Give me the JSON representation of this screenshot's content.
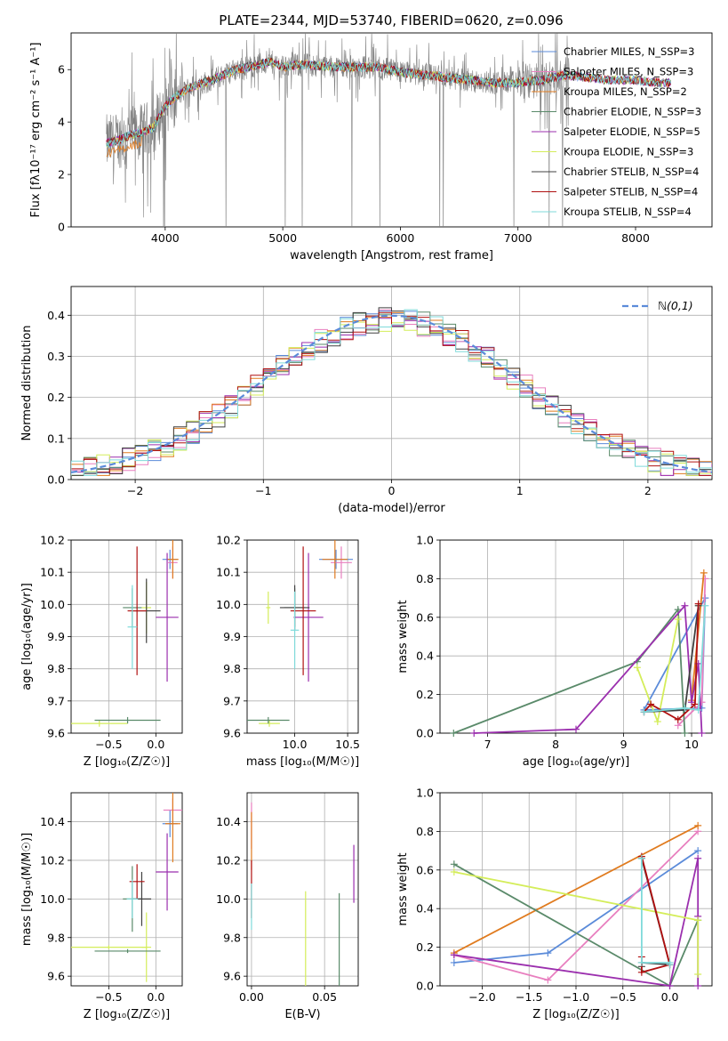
{
  "figure": {
    "title": "PLATE=2344, MJD=53740, FIBERID=0620, z=0.096"
  },
  "chart_data": [
    {
      "id": "spectrum",
      "type": "line",
      "title": "PLATE=2344, MJD=53740, FIBERID=0620, z=0.096",
      "xlabel": "wavelength [Angstrom, rest frame]",
      "ylabel": "Flux [fλ10⁻¹⁷ erg cm⁻² s⁻¹ A⁻¹]",
      "xlim": [
        3200,
        8650
      ],
      "ylim": [
        0,
        7.4
      ],
      "xticks": [
        4000,
        5000,
        6000,
        7000,
        8000
      ],
      "yticks": [
        0,
        2,
        4,
        6
      ],
      "grid": false,
      "legend_position": "right",
      "data_color": "#808080",
      "series": [
        {
          "name": "Chabrier MILES, N_SSP=3",
          "color": "#5b8bd9"
        },
        {
          "name": "Salpeter MILES, N_SSP=3",
          "color": "#e87fbf"
        },
        {
          "name": "Kroupa MILES, N_SSP=2",
          "color": "#e07b1f"
        },
        {
          "name": "Chabrier ELODIE, N_SSP=3",
          "color": "#5a8a6a"
        },
        {
          "name": "Salpeter ELODIE, N_SSP=5",
          "color": "#9b2fae"
        },
        {
          "name": "Kroupa ELODIE, N_SSP=3",
          "color": "#d4ed5a"
        },
        {
          "name": "Chabrier STELIB, N_SSP=4",
          "color": "#404040"
        },
        {
          "name": "Salpeter STELIB, N_SSP=4",
          "color": "#b01010"
        },
        {
          "name": "Kroupa STELIB, N_SSP=4",
          "color": "#7fdada"
        }
      ],
      "continuum": {
        "x": [
          3500,
          3600,
          3700,
          3800,
          3900,
          4000,
          4100,
          4200,
          4400,
          4600,
          4800,
          4900,
          5000,
          5200,
          5400,
          5600,
          5800,
          6000,
          6200,
          6400,
          6600,
          6800,
          7000,
          7200,
          7400,
          7600,
          7800,
          8000,
          8200,
          8300
        ],
        "y": [
          3.2,
          3.3,
          3.5,
          3.6,
          3.8,
          4.6,
          5.0,
          5.3,
          5.6,
          6.0,
          6.2,
          6.3,
          6.1,
          6.2,
          6.1,
          6.1,
          6.1,
          5.9,
          5.8,
          5.7,
          5.6,
          5.5,
          5.5,
          5.6,
          5.8,
          5.7,
          5.6,
          5.6,
          5.5,
          5.5
        ]
      }
    },
    {
      "id": "residuals",
      "type": "bar",
      "xlabel": "(data-model)/error",
      "ylabel": "Normed distribution",
      "xlim": [
        -2.5,
        2.5
      ],
      "ylim": [
        0,
        0.47
      ],
      "xticks": [
        -2,
        -1,
        0,
        1,
        2
      ],
      "yticks": [
        0.0,
        0.1,
        0.2,
        0.3,
        0.4
      ],
      "grid": true,
      "legend": "ℕ(0,1)",
      "legend_position": "top-right",
      "reference_curve": "normal(0,1)",
      "reference_color": "#5b8bd9"
    },
    {
      "id": "age-vs-Z",
      "type": "scatter",
      "xlabel": "Z [log₁₀(Z/Z☉)]",
      "ylabel": "age  [log₁₀(age/yr)]",
      "xlim": [
        -0.9,
        0.28
      ],
      "ylim": [
        9.6,
        10.2
      ],
      "xticks": [
        -0.5,
        0.0
      ],
      "yticks": [
        9.6,
        9.7,
        9.8,
        9.9,
        10.0,
        10.1,
        10.2
      ],
      "grid": true,
      "points": [
        {
          "x": 0.15,
          "y": 10.14,
          "xerr": 0.08,
          "yerr": 0.03,
          "color": "#5b8bd9"
        },
        {
          "x": 0.18,
          "y": 10.13,
          "xerr": 0.05,
          "yerr": 0.05,
          "color": "#e87fbf"
        },
        {
          "x": 0.18,
          "y": 10.14,
          "xerr": 0.06,
          "yerr": 0.06,
          "color": "#e07b1f"
        },
        {
          "x": -0.25,
          "y": 9.99,
          "xerr": 0.1,
          "yerr": 0.06,
          "color": "#5a8a6a"
        },
        {
          "x": 0.12,
          "y": 9.96,
          "xerr": 0.12,
          "yerr": 0.2,
          "color": "#9b2fae"
        },
        {
          "x": -0.1,
          "y": 9.99,
          "xerr": 0.05,
          "yerr": 0.08,
          "color": "#d4ed5a"
        },
        {
          "x": -0.1,
          "y": 9.98,
          "xerr": 0.15,
          "yerr": 0.1,
          "color": "#404040"
        },
        {
          "x": -0.2,
          "y": 9.98,
          "xerr": 0.1,
          "yerr": 0.2,
          "color": "#b01010"
        },
        {
          "x": -0.25,
          "y": 9.93,
          "xerr": 0.05,
          "yerr": 0.13,
          "color": "#7fdada"
        },
        {
          "x": -0.6,
          "y": 9.63,
          "xerr": 0.3,
          "yerr": 0.01,
          "color": "#d4ed5a"
        },
        {
          "x": -0.3,
          "y": 9.64,
          "xerr": 0.35,
          "yerr": 0.01,
          "color": "#5a8a6a"
        }
      ]
    },
    {
      "id": "age-vs-mass",
      "type": "scatter",
      "xlabel": "mass [log₁₀(M/M☉)]",
      "ylabel": "",
      "xlim": [
        9.55,
        10.6
      ],
      "ylim": [
        9.6,
        10.2
      ],
      "xticks": [
        10.0,
        10.5
      ],
      "yticks": [
        9.6,
        9.7,
        9.8,
        9.9,
        10.0,
        10.1,
        10.2
      ],
      "grid": true,
      "points": [
        {
          "x": 10.39,
          "y": 10.14,
          "xerr": 0.16,
          "yerr": 0.03,
          "color": "#5b8bd9"
        },
        {
          "x": 10.44,
          "y": 10.13,
          "xerr": 0.1,
          "yerr": 0.05,
          "color": "#e87fbf"
        },
        {
          "x": 10.38,
          "y": 10.14,
          "xerr": 0.12,
          "yerr": 0.06,
          "color": "#e07b1f"
        },
        {
          "x": 10.0,
          "y": 9.99,
          "xerr": 0.1,
          "yerr": 0.06,
          "color": "#5a8a6a"
        },
        {
          "x": 10.13,
          "y": 9.96,
          "xerr": 0.14,
          "yerr": 0.2,
          "color": "#9b2fae"
        },
        {
          "x": 9.75,
          "y": 9.99,
          "xerr": 0.02,
          "yerr": 0.05,
          "color": "#d4ed5a"
        },
        {
          "x": 10.0,
          "y": 9.99,
          "xerr": 0.14,
          "yerr": 0.07,
          "color": "#404040"
        },
        {
          "x": 10.08,
          "y": 9.98,
          "xerr": 0.12,
          "yerr": 0.2,
          "color": "#b01010"
        },
        {
          "x": 10.0,
          "y": 9.92,
          "xerr": 0.04,
          "yerr": 0.12,
          "color": "#7fdada"
        },
        {
          "x": 9.76,
          "y": 9.63,
          "xerr": 0.1,
          "yerr": 0.01,
          "color": "#d4ed5a"
        },
        {
          "x": 9.75,
          "y": 9.64,
          "xerr": 0.2,
          "yerr": 0.01,
          "color": "#5a8a6a"
        }
      ]
    },
    {
      "id": "weight-vs-age",
      "type": "line",
      "xlabel": "age  [log₁₀(age/yr)]",
      "ylabel": "mass weight",
      "xlim": [
        6.3,
        10.3
      ],
      "ylim": [
        0.0,
        1.0
      ],
      "xticks": [
        7,
        8,
        9,
        10
      ],
      "yticks": [
        0.0,
        0.2,
        0.4,
        0.6,
        0.8,
        1.0
      ],
      "grid": true,
      "series": [
        {
          "name": "Chabrier MILES, N_SSP=3",
          "color": "#5b8bd9",
          "x": [
            9.3,
            10.15,
            10.2,
            9.3
          ],
          "y": [
            0.12,
            0.13,
            0.7,
            0.12
          ]
        },
        {
          "name": "Salpeter MILES, N_SSP=3",
          "color": "#e87fbf",
          "x": [
            9.8,
            10.15,
            10.2
          ],
          "y": [
            0.04,
            0.16,
            0.8
          ]
        },
        {
          "name": "Kroupa MILES, N_SSP=2",
          "color": "#e07b1f",
          "x": [
            10.0,
            10.18
          ],
          "y": [
            0.17,
            0.83
          ]
        },
        {
          "name": "Chabrier ELODIE, N_SSP=3",
          "color": "#5a8a6a",
          "x": [
            6.5,
            9.2,
            9.8,
            9.9
          ],
          "y": [
            0.0,
            0.37,
            0.64,
            0.0
          ]
        },
        {
          "name": "Salpeter ELODIE, N_SSP=5",
          "color": "#9b2fae",
          "x": [
            6.8,
            8.3,
            9.9,
            10.0,
            10.1,
            10.15
          ],
          "y": [
            0.0,
            0.02,
            0.66,
            0.16,
            0.36,
            0.0
          ]
        },
        {
          "name": "Kroupa ELODIE, N_SSP=3",
          "color": "#d4ed5a",
          "x": [
            9.2,
            9.5,
            9.8
          ],
          "y": [
            0.34,
            0.06,
            0.59
          ]
        },
        {
          "name": "Chabrier STELIB, N_SSP=4",
          "color": "#404040",
          "x": [
            9.3,
            9.9,
            10.1
          ],
          "y": [
            0.11,
            0.12,
            0.66
          ]
        },
        {
          "name": "Salpeter STELIB, N_SSP=4",
          "color": "#b01010",
          "x": [
            9.3,
            9.4,
            9.8,
            10.05,
            10.1
          ],
          "y": [
            0.11,
            0.15,
            0.07,
            0.15,
            0.67
          ]
        },
        {
          "name": "Kroupa STELIB, N_SSP=4",
          "color": "#7fdada",
          "x": [
            9.3,
            9.9,
            10.1,
            10.2
          ],
          "y": [
            0.11,
            0.13,
            0.12,
            0.66
          ]
        }
      ]
    },
    {
      "id": "mass-vs-Z",
      "type": "scatter",
      "xlabel": "Z [log₁₀(Z/Z☉)]",
      "ylabel": "mass [log₁₀(M/M☉)]",
      "xlim": [
        -0.9,
        0.28
      ],
      "ylim": [
        9.55,
        10.55
      ],
      "xticks": [
        -0.5,
        0.0
      ],
      "yticks": [
        9.6,
        9.8,
        10.0,
        10.2,
        10.4
      ],
      "grid": true,
      "points": [
        {
          "x": 0.15,
          "y": 10.39,
          "xerr": 0.08,
          "yerr": 0.07,
          "color": "#5b8bd9"
        },
        {
          "x": 0.18,
          "y": 10.46,
          "xerr": 0.1,
          "yerr": 0.06,
          "color": "#e87fbf"
        },
        {
          "x": 0.18,
          "y": 10.39,
          "xerr": 0.08,
          "yerr": 0.2,
          "color": "#e07b1f"
        },
        {
          "x": -0.25,
          "y": 10.0,
          "xerr": 0.1,
          "yerr": 0.17,
          "color": "#5a8a6a"
        },
        {
          "x": 0.12,
          "y": 10.14,
          "xerr": 0.12,
          "yerr": 0.2,
          "color": "#9b2fae"
        },
        {
          "x": -0.1,
          "y": 9.75,
          "xerr": 0.05,
          "yerr": 0.18,
          "color": "#d4ed5a"
        },
        {
          "x": -0.15,
          "y": 10.0,
          "xerr": 0.1,
          "yerr": 0.14,
          "color": "#404040"
        },
        {
          "x": -0.2,
          "y": 10.09,
          "xerr": 0.08,
          "yerr": 0.09,
          "color": "#b01010"
        },
        {
          "x": -0.25,
          "y": 10.0,
          "xerr": 0.06,
          "yerr": 0.1,
          "color": "#7fdada"
        },
        {
          "x": -0.5,
          "y": 9.75,
          "xerr": 0.4,
          "yerr": 0.01,
          "color": "#d4ed5a"
        },
        {
          "x": -0.3,
          "y": 9.73,
          "xerr": 0.35,
          "yerr": 0.01,
          "color": "#5a8a6a"
        }
      ]
    },
    {
      "id": "mass-vs-ebv",
      "type": "scatter",
      "xlabel": "E(B-V)",
      "ylabel": "",
      "xlim": [
        -0.003,
        0.073
      ],
      "ylim": [
        9.55,
        10.55
      ],
      "xticks": [
        0.0,
        0.05
      ],
      "yticks": [
        9.6,
        9.8,
        10.0,
        10.2,
        10.4
      ],
      "grid": true,
      "points": [
        {
          "x": 0.0,
          "y": 10.38,
          "xerr": 0.0,
          "yerr": 0.12,
          "color": "#e87fbf"
        },
        {
          "x": 0.0,
          "y": 10.3,
          "xerr": 0.0,
          "yerr": 0.15,
          "color": "#e07b1f"
        },
        {
          "x": 0.0,
          "y": 10.05,
          "xerr": 0.0,
          "yerr": 0.15,
          "color": "#b01010"
        },
        {
          "x": 0.0,
          "y": 9.96,
          "xerr": 0.0,
          "yerr": 0.12,
          "color": "#7fdada"
        },
        {
          "x": 0.037,
          "y": 9.75,
          "xerr": 0.0,
          "yerr": 0.29,
          "color": "#d4ed5a"
        },
        {
          "x": 0.06,
          "y": 9.73,
          "xerr": 0.0,
          "yerr": 0.3,
          "color": "#5a8a6a"
        },
        {
          "x": 0.07,
          "y": 10.13,
          "xerr": 0.0,
          "yerr": 0.15,
          "color": "#9b2fae"
        }
      ]
    },
    {
      "id": "weight-vs-Z",
      "type": "line",
      "xlabel": "Z [log₁₀(Z/Z☉)]",
      "ylabel": "mass weight",
      "xlim": [
        -2.45,
        0.45
      ],
      "ylim": [
        0.0,
        1.0
      ],
      "xticks": [
        -2.0,
        -1.5,
        -1.0,
        -0.5,
        0.0
      ],
      "yticks": [
        0.0,
        0.2,
        0.4,
        0.6,
        0.8,
        1.0
      ],
      "grid": true,
      "series": [
        {
          "name": "Chabrier MILES, N_SSP=3",
          "color": "#5b8bd9",
          "x": [
            -2.3,
            -1.3,
            0.3
          ],
          "y": [
            0.12,
            0.17,
            0.7
          ]
        },
        {
          "name": "Salpeter MILES, N_SSP=3",
          "color": "#e87fbf",
          "x": [
            -2.3,
            -1.3,
            0.3
          ],
          "y": [
            0.16,
            0.03,
            0.8
          ]
        },
        {
          "name": "Kroupa MILES, N_SSP=2",
          "color": "#e07b1f",
          "x": [
            -2.3,
            0.3
          ],
          "y": [
            0.17,
            0.83
          ]
        },
        {
          "name": "Chabrier ELODIE, N_SSP=3",
          "color": "#5a8a6a",
          "x": [
            -2.3,
            0.0,
            0.3
          ],
          "y": [
            0.63,
            0.0,
            0.34
          ]
        },
        {
          "name": "Salpeter ELODIE, N_SSP=5",
          "color": "#9b2fae",
          "x": [
            -2.3,
            0.0,
            0.3,
            0.3,
            0.3
          ],
          "y": [
            0.16,
            0.0,
            0.66,
            0.36,
            0.0
          ]
        },
        {
          "name": "Kroupa ELODIE, N_SSP=3",
          "color": "#d4ed5a",
          "x": [
            -2.3,
            0.3,
            0.3
          ],
          "y": [
            0.59,
            0.34,
            0.06
          ]
        },
        {
          "name": "Chabrier STELIB, N_SSP=4",
          "color": "#404040",
          "x": [
            -0.3,
            0.0,
            -0.3,
            -0.3
          ],
          "y": [
            0.66,
            0.11,
            0.12,
            0.1
          ]
        },
        {
          "name": "Salpeter STELIB, N_SSP=4",
          "color": "#b01010",
          "x": [
            -0.3,
            0.0,
            -0.3,
            -0.3
          ],
          "y": [
            0.67,
            0.11,
            0.07,
            0.15
          ]
        },
        {
          "name": "Kroupa STELIB, N_SSP=4",
          "color": "#7fdada",
          "x": [
            -0.3,
            -0.3,
            0.0,
            0.0
          ],
          "y": [
            0.66,
            0.12,
            0.12,
            0.11
          ]
        }
      ]
    }
  ]
}
